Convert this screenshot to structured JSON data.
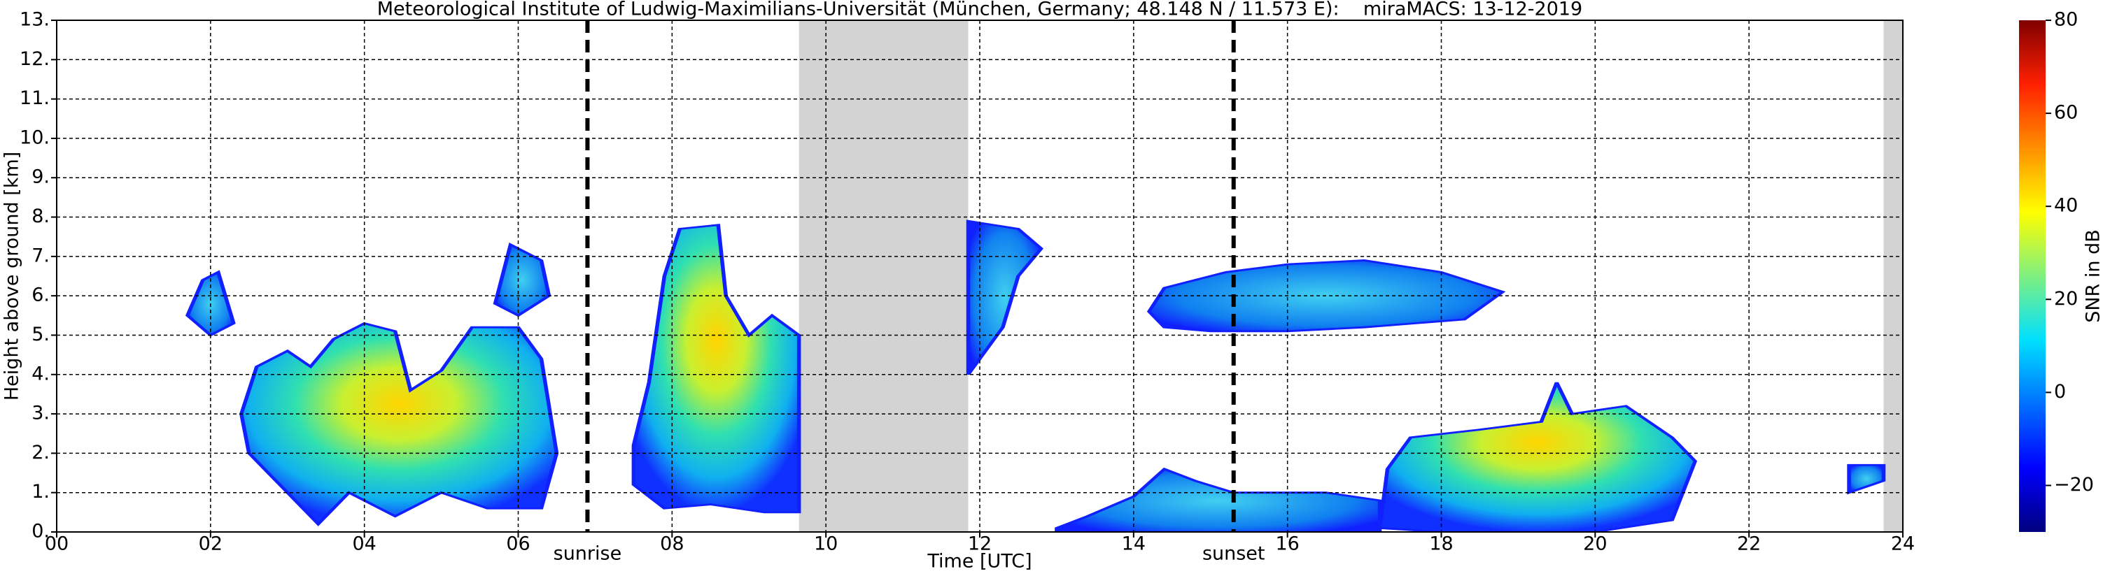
{
  "chart_data": {
    "type": "heatmap",
    "title": "Meteorological Institute of Ludwig-Maximilians-Universität (München, Germany; 48.148 N / 11.573 E):    miraMACS: 13-12-2019",
    "xlabel": "Time [UTC]",
    "ylabel": "Height above ground [km]",
    "xlim": [
      0,
      24
    ],
    "ylim": [
      0,
      13
    ],
    "xticks": [
      {
        "value": 0,
        "label": "00"
      },
      {
        "value": 2,
        "label": "02"
      },
      {
        "value": 4,
        "label": "04"
      },
      {
        "value": 6,
        "label": "06"
      },
      {
        "value": 8,
        "label": "08"
      },
      10,
      12,
      14,
      16,
      18,
      20,
      22,
      24
    ],
    "yticks": [
      {
        "value": 0,
        "label": "0."
      },
      {
        "value": 1,
        "label": "1."
      },
      {
        "value": 2,
        "label": "2."
      },
      {
        "value": 3,
        "label": "3."
      },
      {
        "value": 4,
        "label": "4."
      },
      {
        "value": 5,
        "label": "5."
      },
      {
        "value": 6,
        "label": "6."
      },
      {
        "value": 7,
        "label": "7."
      },
      {
        "value": 8,
        "label": "8."
      },
      {
        "value": 9,
        "label": "9."
      },
      {
        "value": 10,
        "label": "10."
      },
      {
        "value": 11,
        "label": "11."
      },
      {
        "value": 12,
        "label": "12."
      },
      {
        "value": 13,
        "label": "13."
      }
    ],
    "grid": true,
    "annotations": [
      {
        "text": "sunrise",
        "x": 6.9
      },
      {
        "text": "sunset",
        "x": 15.3
      }
    ],
    "no_data": [
      [
        9.65,
        11.85
      ],
      [
        23.75,
        24
      ]
    ],
    "colorbar": {
      "label": "SNR in dB",
      "lim": [
        -30,
        80
      ],
      "ticks": [
        {
          "value": -20,
          "label": "−20"
        },
        0,
        20,
        40,
        60,
        80
      ]
    }
  }
}
